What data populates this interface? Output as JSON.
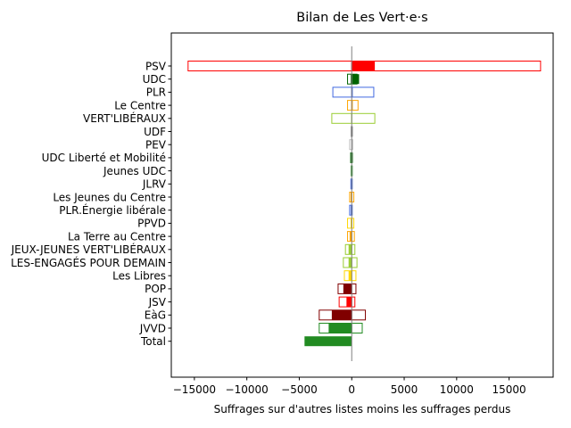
{
  "chart_data": {
    "type": "bar",
    "orientation": "horizontal",
    "title": "Bilan de Les Vert·e·s",
    "xlabel": "Suffrages sur d'autres listes moins les suffrages perdus",
    "ylabel": "",
    "xlim": [
      -17200,
      19200
    ],
    "xticks": [
      -15000,
      -10000,
      -5000,
      0,
      5000,
      10000,
      15000
    ],
    "xtick_labels": [
      "−15000",
      "−10000",
      "−5000",
      "0",
      "5000",
      "10000",
      "15000"
    ],
    "grid": false,
    "categories": [
      "PSV",
      "UDC",
      "PLR",
      "Le Centre",
      "VERT'LIBÉRAUX",
      "UDF",
      "PEV",
      "UDC Liberté et Mobilité",
      "Jeunes UDC",
      "JLRV",
      "Les Jeunes du Centre",
      "PLR.Énergie libérale",
      "PPVD",
      "La Terre au Centre",
      "JEUX-JEUNES VERT'LIBÉRAUX",
      "LES-ENGAGÉS POUR DEMAIN",
      "Les Libres",
      "POP",
      "JSV",
      "EàG",
      "JVVD",
      "Total"
    ],
    "colors": [
      "#ff0000",
      "#006400",
      "#4169e1",
      "#ffa500",
      "#9acd32",
      "#808080",
      "#c0c0c0",
      "#006400",
      "#228b22",
      "#4169e1",
      "#ffa500",
      "#4169e1",
      "#ffd700",
      "#ffa500",
      "#9acd32",
      "#9acd32",
      "#ffd700",
      "#800000",
      "#ff0000",
      "#800000",
      "#228b22",
      "#228b22"
    ],
    "series": [
      {
        "values": [
          18000,
          500,
          2100,
          600,
          2200,
          50,
          100,
          50,
          50,
          50,
          200,
          50,
          200,
          250,
          300,
          500,
          400,
          400,
          300,
          1300,
          1000,
          0
        ]
      },
      {
        "values": [
          -15600,
          -400,
          -1800,
          -400,
          -1900,
          -50,
          -200,
          -100,
          -50,
          -80,
          -200,
          -200,
          -400,
          -400,
          -600,
          -800,
          -700,
          -1300,
          -1200,
          -3100,
          -3100,
          0
        ]
      },
      {
        "values": [
          2200,
          700,
          100,
          100,
          0,
          100,
          0,
          100,
          0,
          0,
          0,
          0,
          0,
          0,
          0,
          0,
          0,
          0,
          0,
          0,
          0,
          0
        ]
      },
      {
        "values": [
          0,
          -100,
          0,
          0,
          0,
          0,
          0,
          0,
          0,
          0,
          -100,
          -100,
          -100,
          -200,
          -300,
          -300,
          -300,
          -800,
          -500,
          -1900,
          -2200,
          -4500
        ]
      }
    ]
  }
}
